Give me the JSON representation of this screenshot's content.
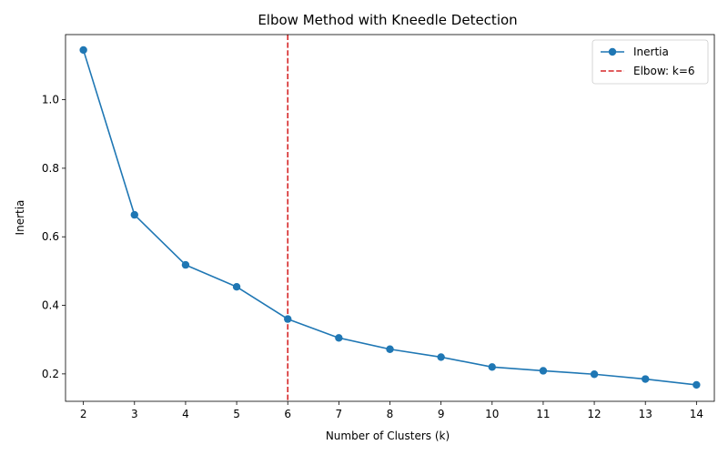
{
  "chart_data": {
    "type": "line",
    "title": "Elbow Method with Kneedle Detection",
    "xlabel": "Number of Clusters (k)",
    "ylabel": "Inertia",
    "x": [
      2,
      3,
      4,
      5,
      6,
      7,
      8,
      9,
      10,
      11,
      12,
      13,
      14
    ],
    "series": [
      {
        "name": "Inertia",
        "values": [
          1.145,
          0.664,
          0.518,
          0.454,
          0.36,
          0.305,
          0.272,
          0.249,
          0.22,
          0.209,
          0.199,
          0.185,
          0.168
        ],
        "color": "#1f77b4",
        "marker": "circle"
      }
    ],
    "elbow": {
      "k": 6,
      "label": "Elbow: k=6",
      "color": "#d62728",
      "style": "dashed"
    },
    "xlim": [
      1.65,
      14.35
    ],
    "ylim": [
      0.12,
      1.19
    ],
    "xticks": [
      2,
      3,
      4,
      5,
      6,
      7,
      8,
      9,
      10,
      11,
      12,
      13,
      14
    ],
    "yticks": [
      0.2,
      0.4,
      0.6,
      0.8,
      1.0
    ],
    "ytick_labels": [
      "0.2",
      "0.4",
      "0.6",
      "0.8",
      "1.0"
    ],
    "grid": false,
    "legend": {
      "position": "top-right",
      "entries": [
        "Inertia",
        "Elbow: k=6"
      ]
    }
  }
}
